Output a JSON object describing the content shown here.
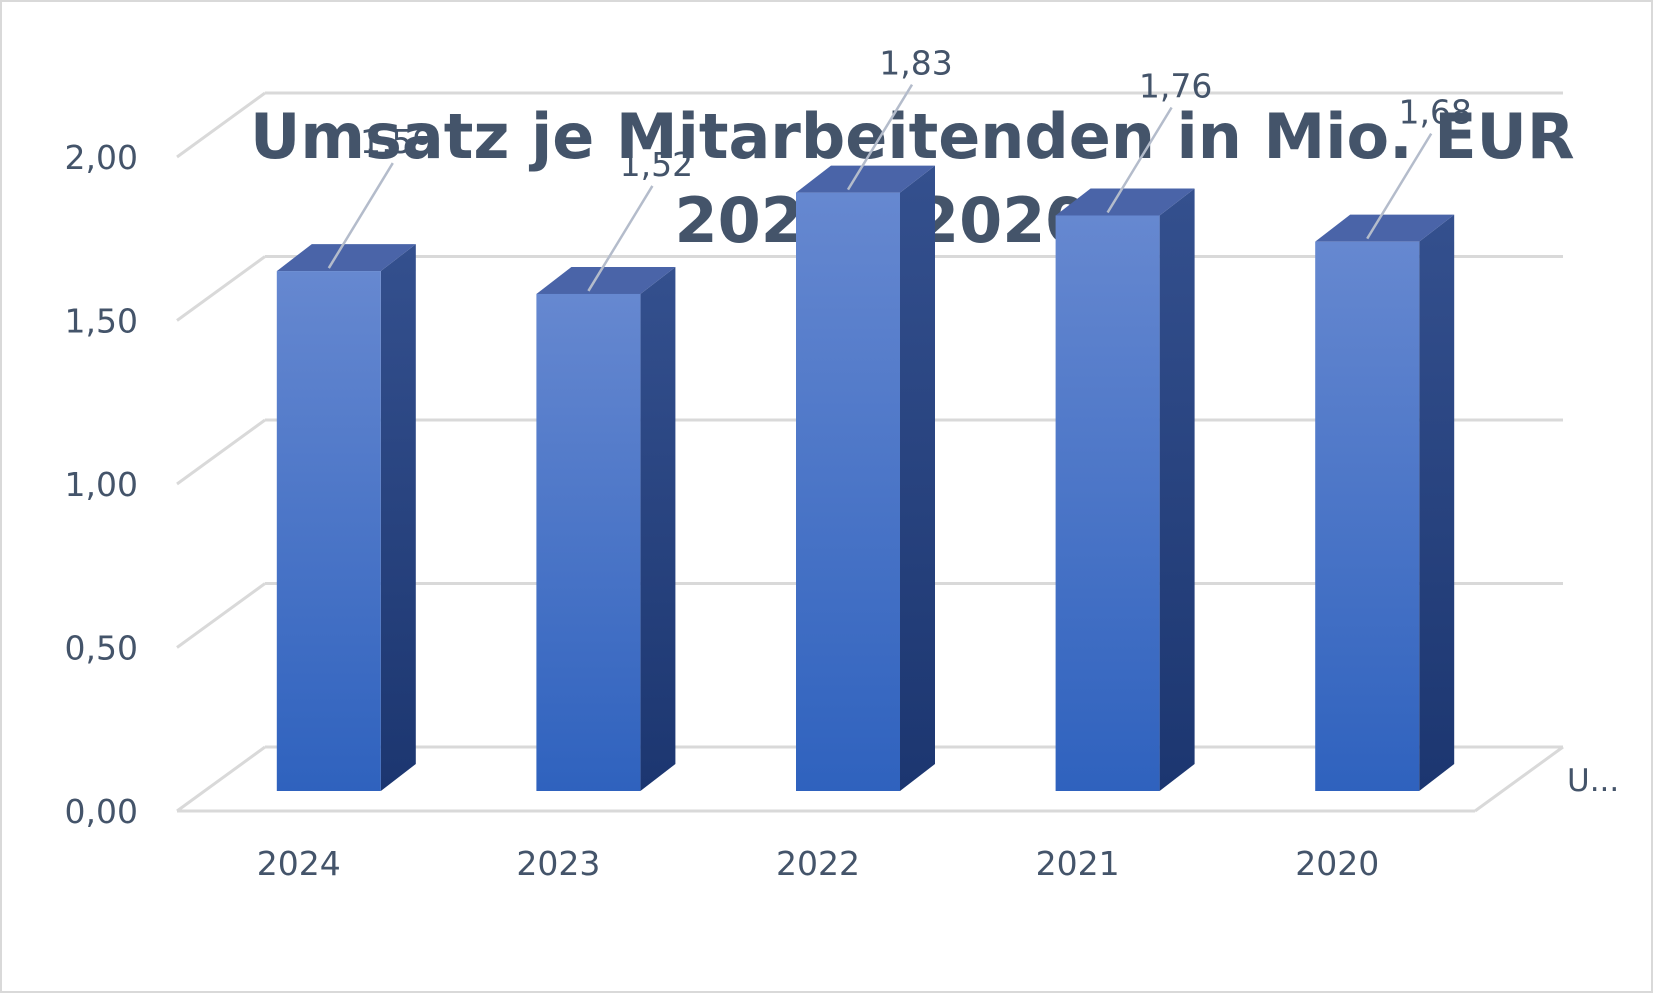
{
  "chart_data": {
    "type": "bar",
    "title_lines": [
      "Umsatz je Mitarbeitenden in Mio. EUR",
      "2024 - 2020"
    ],
    "categories": [
      "2024",
      "2023",
      "2022",
      "2021",
      "2020"
    ],
    "values": [
      1.59,
      1.52,
      1.83,
      1.76,
      1.68
    ],
    "value_labels": [
      "1,59",
      "1,52",
      "1,83",
      "1,76",
      "1,68"
    ],
    "y_ticks": [
      "0,00",
      "0,50",
      "1,00",
      "1,50",
      "2,00"
    ],
    "ylim": [
      0,
      2.0
    ],
    "series_label": "U...",
    "three_d": true,
    "grid": true,
    "colors": {
      "bar_front_top": "#6688d0",
      "bar_front_bottom": "#2f62be",
      "bar_side": "#243f7a",
      "bar_top": "#4a64a8",
      "text": "#44546a",
      "grid": "#d9d9d9"
    }
  }
}
